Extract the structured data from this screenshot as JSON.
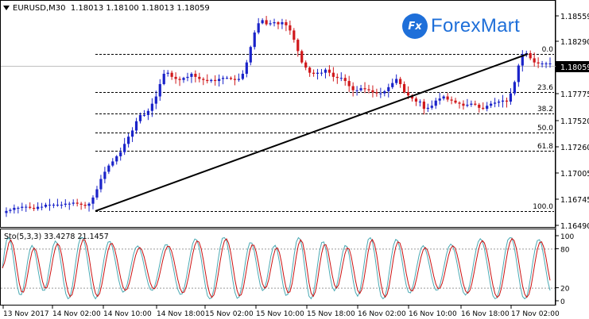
{
  "header": {
    "symbol_line": "EURUSD,M30  1.18013 1.18100 1.18013 1.18059",
    "indicator_label": "Sto(5,3,3) 33.4278 21.1457"
  },
  "logo": {
    "badge": "Fx",
    "text": "ForexMart"
  },
  "colors": {
    "bull": "#1a23c9",
    "bear": "#d0191c",
    "stoch_main": "#4aa9b3",
    "stoch_signal": "#cc1010",
    "grid_dash": "#000000"
  },
  "chart_data": [
    {
      "type": "candlestick",
      "instrument": "EURUSD",
      "timeframe": "M30",
      "ylim": [
        1.1649,
        1.1866
      ],
      "y_ticks": [
        "1.18559",
        "1.18290",
        "1.18059",
        "1.17775",
        "1.17520",
        "1.17260",
        "1.17005",
        "1.16745",
        "1.16490"
      ],
      "current_price": "1.18059",
      "x_ticks": [
        "13 Nov 2017",
        "14 Nov 02:00",
        "14 Nov 10:00",
        "14 Nov 18:00",
        "15 Nov 02:00",
        "15 Nov 10:00",
        "15 Nov 18:00",
        "16 Nov 02:00",
        "16 Nov 10:00",
        "16 Nov 18:00",
        "17 Nov 02:00"
      ],
      "fib_levels": [
        {
          "label": "0.0",
          "price": 1.1818
        },
        {
          "label": "23.6",
          "price": 1.1778
        },
        {
          "label": "38.2",
          "price": 1.1757
        },
        {
          "label": "50.0",
          "price": 1.1736
        },
        {
          "label": "61.8",
          "price": 1.172
        },
        {
          "label": "100.0",
          "price": 1.1665
        }
      ],
      "trendline": {
        "from": 1.1665,
        "to": 1.1818
      },
      "close_path": [
        1.1661,
        1.1663,
        1.1664,
        1.1666,
        1.1666,
        1.1667,
        1.1667,
        1.1666,
        1.1665,
        1.1667,
        1.1667,
        1.1669,
        1.1669,
        1.1669,
        1.1669,
        1.1669,
        1.167,
        1.167,
        1.1671,
        1.167,
        1.1669,
        1.1668,
        1.167,
        1.1676,
        1.1684,
        1.1694,
        1.1701,
        1.1707,
        1.1711,
        1.1716,
        1.172,
        1.1728,
        1.1735,
        1.1741,
        1.175,
        1.1756,
        1.1756,
        1.176,
        1.1767,
        1.1774,
        1.1786,
        1.1796,
        1.1797,
        1.1793,
        1.1791,
        1.179,
        1.1792,
        1.1793,
        1.1796,
        1.1793,
        1.1791,
        1.179,
        1.1789,
        1.179,
        1.1789,
        1.1791,
        1.1792,
        1.1792,
        1.1791,
        1.179,
        1.1791,
        1.1796,
        1.1807,
        1.1822,
        1.1836,
        1.1845,
        1.1848,
        1.1844,
        1.1845,
        1.1846,
        1.1844,
        1.1846,
        1.1843,
        1.1838,
        1.1829,
        1.1818,
        1.1807,
        1.1802,
        1.1797,
        1.1796,
        1.1797,
        1.1797,
        1.18,
        1.1797,
        1.1793,
        1.1792,
        1.1792,
        1.1789,
        1.1784,
        1.178,
        1.178,
        1.1782,
        1.1781,
        1.178,
        1.1778,
        1.1777,
        1.1777,
        1.1779,
        1.1783,
        1.1787,
        1.1791,
        1.1786,
        1.1778,
        1.1775,
        1.1772,
        1.1769,
        1.1769,
        1.1762,
        1.1763,
        1.1765,
        1.177,
        1.1772,
        1.1774,
        1.1771,
        1.177,
        1.1768,
        1.1767,
        1.1765,
        1.1766,
        1.1767,
        1.1766,
        1.1763,
        1.1762,
        1.1765,
        1.1767,
        1.1768,
        1.1769,
        1.177,
        1.1769,
        1.1777,
        1.1788,
        1.1804,
        1.1815,
        1.1816,
        1.1811,
        1.1807,
        1.1806,
        1.1806,
        1.1806,
        1.1806
      ]
    },
    {
      "type": "line",
      "indicator": "Stochastic(5,3,3)",
      "ylim": [
        0,
        100
      ],
      "y_ticks": [
        "100",
        "80",
        "20",
        "0"
      ],
      "levels": [
        80,
        20
      ]
    }
  ]
}
